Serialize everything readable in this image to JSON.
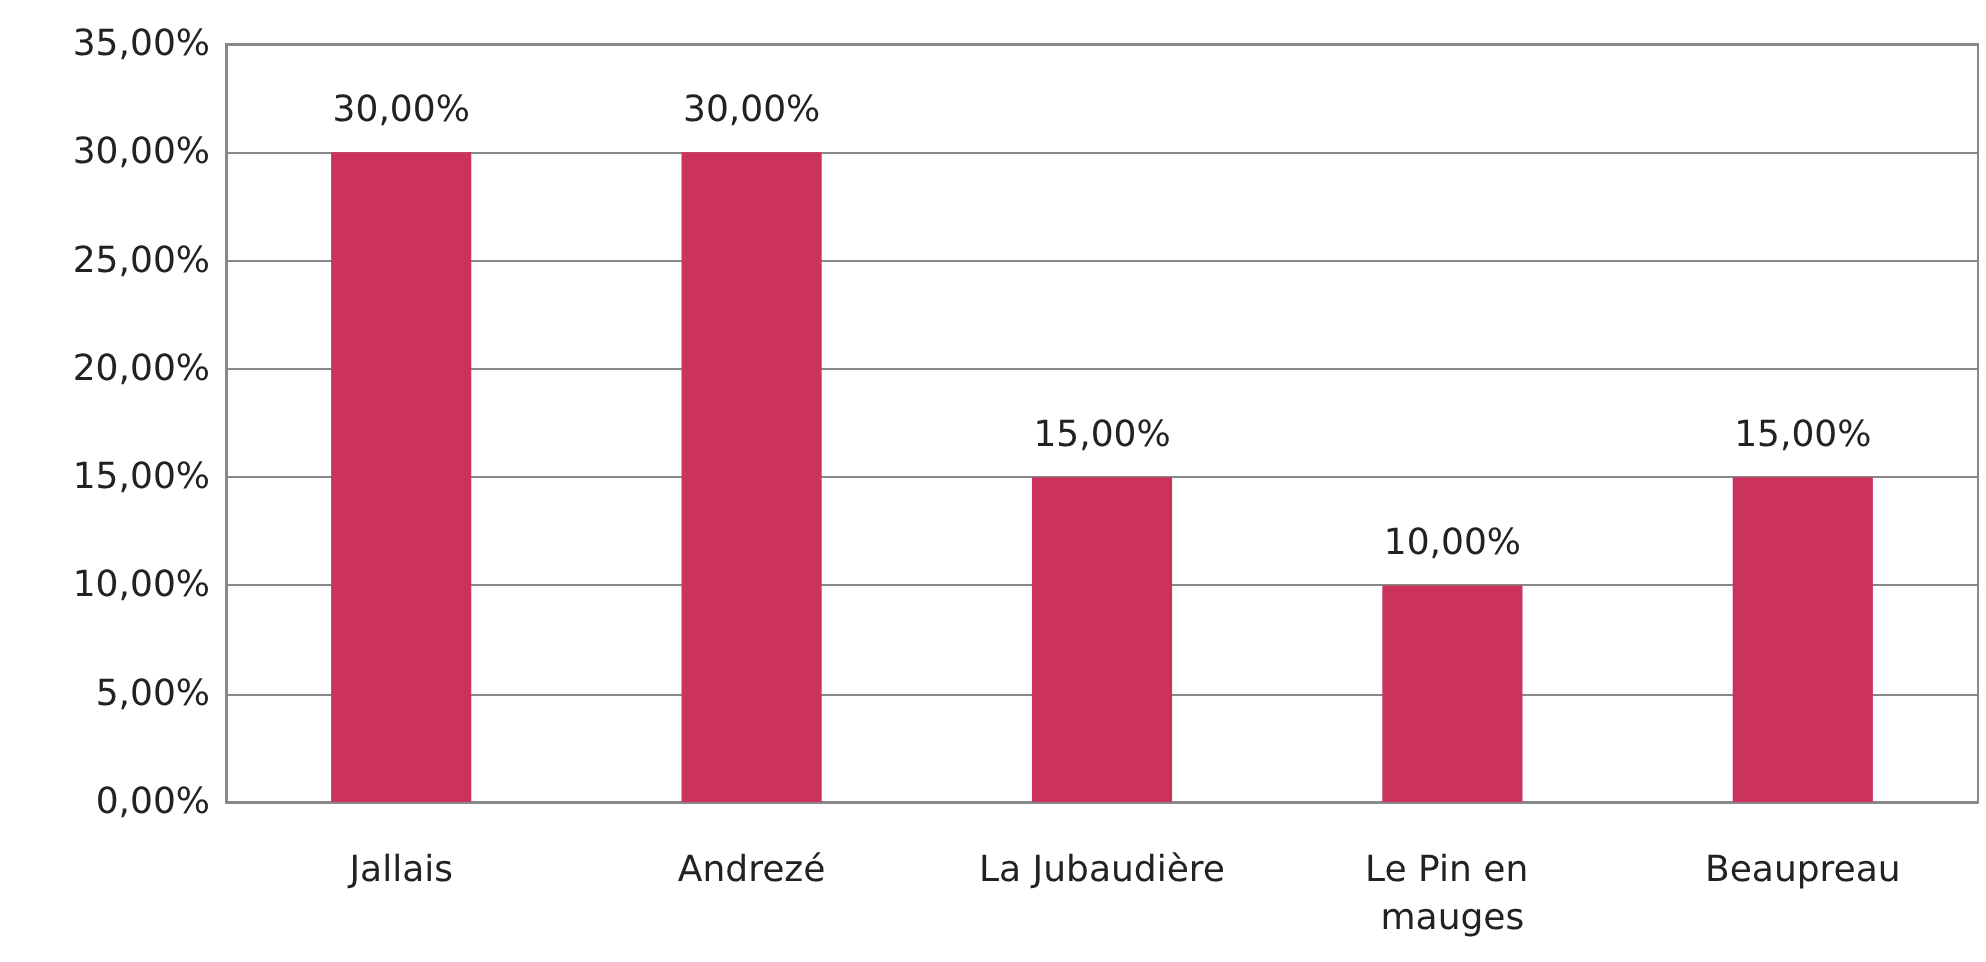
{
  "chart_data": {
    "type": "bar",
    "categories": [
      "Jallais",
      "Andrezé",
      "La Jubaudière",
      "Le Pin en mauges",
      "Beaupreau"
    ],
    "values": [
      30,
      30,
      15,
      10,
      15
    ],
    "color": "#cb325c",
    "value_labels": [
      "30,00%",
      "30,00%",
      "15,00%",
      "10,00%",
      "15,00%"
    ],
    "ylim": [
      0,
      35
    ],
    "yticks": [
      {
        "value": 0,
        "label": "0,00%"
      },
      {
        "value": 5,
        "label": "5,00%"
      },
      {
        "value": 10,
        "label": "10,00%"
      },
      {
        "value": 15,
        "label": "15,00%"
      },
      {
        "value": 20,
        "label": "20,00%"
      },
      {
        "value": 25,
        "label": "25,00%"
      },
      {
        "value": 30,
        "label": "30,00%"
      },
      {
        "value": 35,
        "label": "35,00%"
      }
    ],
    "grid": "y"
  }
}
